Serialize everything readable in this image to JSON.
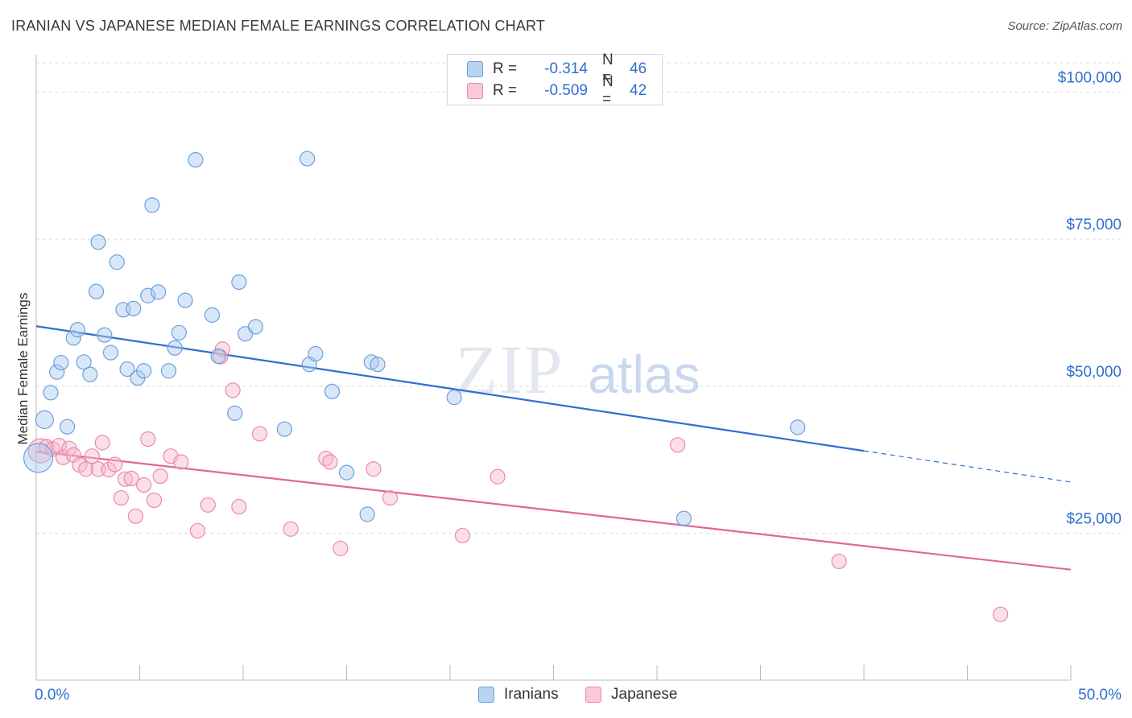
{
  "header": {
    "title": "IRANIAN VS JAPANESE MEDIAN FEMALE EARNINGS CORRELATION CHART",
    "source": "Source: ZipAtlas.com"
  },
  "legend_top": {
    "rows": [
      {
        "r_label": "R =",
        "r_value": "-0.314",
        "n_label": "N =",
        "n_value": "46"
      },
      {
        "r_label": "R =",
        "r_value": "-0.509",
        "n_label": "N =",
        "n_value": "42"
      }
    ]
  },
  "legend_bottom": {
    "items": [
      {
        "label": "Iranians"
      },
      {
        "label": "Japanese"
      }
    ]
  },
  "watermark": {
    "zip": "ZIP",
    "atlas": "atlas"
  },
  "colors": {
    "iranians_fill": "#a9c9f0",
    "iranians_stroke": "#6e9fd8",
    "iranians_line": "#2f6fd0",
    "japanese_fill": "#f7b9cc",
    "japanese_stroke": "#e98aaa",
    "japanese_line": "#e06891",
    "tick_label": "#2f6fd0",
    "grid": "#dcdcdc"
  },
  "chart_data": {
    "type": "scatter",
    "title": "IRANIAN VS JAPANESE MEDIAN FEMALE EARNINGS CORRELATION CHART",
    "xlabel": "",
    "ylabel": "Median Female Earnings",
    "xlim": [
      0,
      50
    ],
    "ylim": [
      0,
      105000
    ],
    "x_tick_labels": [
      "0.0%",
      "50.0%"
    ],
    "y_ticks": [
      25000,
      50000,
      75000,
      100000
    ],
    "y_tick_labels": [
      "$25,000",
      "$50,000",
      "$75,000",
      "$100,000"
    ],
    "grid": "horizontal dashed",
    "legend_position": "top-center",
    "series": [
      {
        "name": "Iranians",
        "r": -0.314,
        "n": 46,
        "trend": {
          "x": [
            0,
            40
          ],
          "y": [
            60200,
            39000
          ],
          "dashed_extension": {
            "x": [
              40,
              50
            ],
            "y": [
              39000,
              33700
            ]
          }
        },
        "points": [
          [
            0.1,
            37800
          ],
          [
            0.4,
            44300
          ],
          [
            0.7,
            48900
          ],
          [
            1.0,
            52400
          ],
          [
            1.2,
            54000
          ],
          [
            1.5,
            43100
          ],
          [
            1.8,
            58200
          ],
          [
            2.0,
            59600
          ],
          [
            2.3,
            54100
          ],
          [
            2.6,
            52000
          ],
          [
            3.0,
            74500
          ],
          [
            2.9,
            66100
          ],
          [
            3.3,
            58700
          ],
          [
            3.6,
            55700
          ],
          [
            3.9,
            71100
          ],
          [
            4.2,
            63000
          ],
          [
            4.4,
            52900
          ],
          [
            4.7,
            63200
          ],
          [
            4.9,
            51400
          ],
          [
            5.2,
            52600
          ],
          [
            5.4,
            65400
          ],
          [
            5.6,
            80800
          ],
          [
            5.9,
            66000
          ],
          [
            6.4,
            52600
          ],
          [
            6.7,
            56500
          ],
          [
            6.9,
            59100
          ],
          [
            7.2,
            64600
          ],
          [
            7.7,
            88500
          ],
          [
            8.5,
            62100
          ],
          [
            8.8,
            55100
          ],
          [
            9.6,
            45400
          ],
          [
            9.8,
            67700
          ],
          [
            10.1,
            58900
          ],
          [
            10.6,
            60100
          ],
          [
            12.0,
            42700
          ],
          [
            13.2,
            53700
          ],
          [
            13.1,
            88700
          ],
          [
            13.5,
            55500
          ],
          [
            14.3,
            49100
          ],
          [
            15.0,
            35300
          ],
          [
            16.2,
            54100
          ],
          [
            16.0,
            28200
          ],
          [
            16.5,
            53700
          ],
          [
            20.2,
            48100
          ],
          [
            31.3,
            27500
          ],
          [
            36.8,
            43000
          ]
        ]
      },
      {
        "name": "Japanese",
        "r": -0.509,
        "n": 42,
        "trend": {
          "x": [
            0,
            50
          ],
          "y": [
            38900,
            18800
          ]
        },
        "points": [
          [
            0.2,
            39000
          ],
          [
            0.5,
            39700
          ],
          [
            0.8,
            39300
          ],
          [
            1.1,
            39900
          ],
          [
            1.3,
            37900
          ],
          [
            1.6,
            39400
          ],
          [
            1.8,
            38300
          ],
          [
            2.1,
            36600
          ],
          [
            2.4,
            35900
          ],
          [
            2.7,
            38100
          ],
          [
            3.0,
            35900
          ],
          [
            3.2,
            40400
          ],
          [
            3.5,
            35800
          ],
          [
            3.8,
            36700
          ],
          [
            4.1,
            31000
          ],
          [
            4.3,
            34200
          ],
          [
            4.6,
            34300
          ],
          [
            4.8,
            27900
          ],
          [
            5.2,
            33200
          ],
          [
            5.4,
            41000
          ],
          [
            5.7,
            30600
          ],
          [
            6.0,
            34700
          ],
          [
            6.5,
            38100
          ],
          [
            7.0,
            37100
          ],
          [
            7.8,
            25400
          ],
          [
            8.3,
            29800
          ],
          [
            8.9,
            55000
          ],
          [
            9.0,
            56300
          ],
          [
            9.5,
            49300
          ],
          [
            9.8,
            29500
          ],
          [
            10.8,
            41900
          ],
          [
            12.3,
            25700
          ],
          [
            14.0,
            37700
          ],
          [
            14.2,
            37100
          ],
          [
            14.7,
            22400
          ],
          [
            16.3,
            35900
          ],
          [
            17.1,
            31000
          ],
          [
            20.6,
            24600
          ],
          [
            22.3,
            34600
          ],
          [
            31.0,
            40000
          ],
          [
            38.8,
            20200
          ],
          [
            46.6,
            11200
          ]
        ]
      }
    ]
  }
}
